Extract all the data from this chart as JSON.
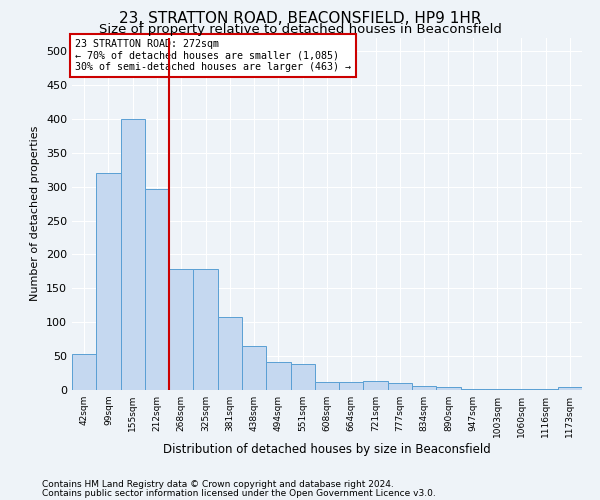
{
  "title": "23, STRATTON ROAD, BEACONSFIELD, HP9 1HR",
  "subtitle": "Size of property relative to detached houses in Beaconsfield",
  "xlabel": "Distribution of detached houses by size in Beaconsfield",
  "ylabel": "Number of detached properties",
  "footnote1": "Contains HM Land Registry data © Crown copyright and database right 2024.",
  "footnote2": "Contains public sector information licensed under the Open Government Licence v3.0.",
  "bar_labels": [
    "42sqm",
    "99sqm",
    "155sqm",
    "212sqm",
    "268sqm",
    "325sqm",
    "381sqm",
    "438sqm",
    "494sqm",
    "551sqm",
    "608sqm",
    "664sqm",
    "721sqm",
    "777sqm",
    "834sqm",
    "890sqm",
    "947sqm",
    "1003sqm",
    "1060sqm",
    "1116sqm",
    "1173sqm"
  ],
  "bar_values": [
    53,
    320,
    400,
    297,
    178,
    178,
    107,
    65,
    42,
    38,
    12,
    12,
    14,
    10,
    6,
    5,
    2,
    1,
    1,
    1,
    4
  ],
  "bar_color": "#c5d8f0",
  "bar_edge_color": "#5a9fd4",
  "property_label": "23 STRATTON ROAD: 272sqm",
  "annotation_line1": "← 70% of detached houses are smaller (1,085)",
  "annotation_line2": "30% of semi-detached houses are larger (463) →",
  "vline_x_index": 4,
  "vline_color": "#cc0000",
  "annotation_box_color": "#cc0000",
  "ylim": [
    0,
    520
  ],
  "yticks": [
    0,
    50,
    100,
    150,
    200,
    250,
    300,
    350,
    400,
    450,
    500
  ],
  "bg_color": "#eef3f8",
  "plot_bg_color": "#eef3f8",
  "grid_color": "#ffffff",
  "title_fontsize": 11,
  "subtitle_fontsize": 9.5,
  "footnote_fontsize": 6.5
}
